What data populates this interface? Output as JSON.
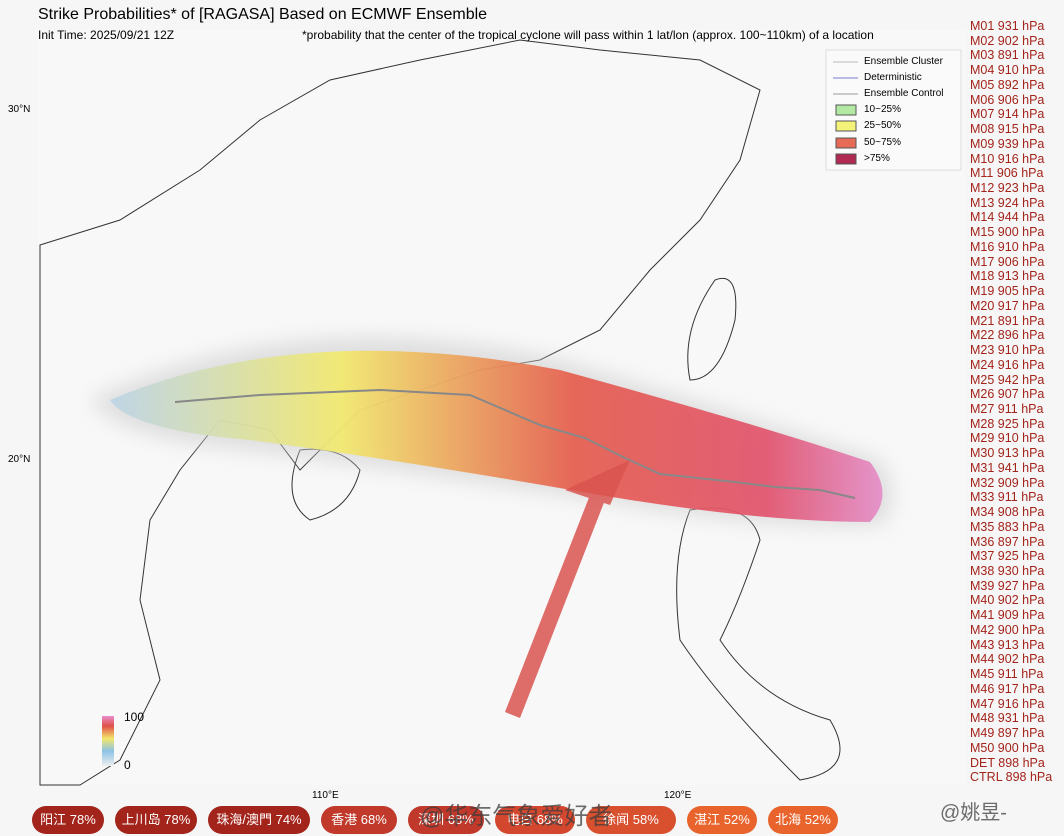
{
  "header": {
    "title": "Strike Probabilities* of [RAGASA] Based on ECMWF Ensemble",
    "init_time": "Init Time: 2025/09/21 12Z",
    "note": "*probability that the center of the tropical cyclone will pass within 1 lat/lon (approx. 100~110km) of a location"
  },
  "legend": {
    "lines": [
      "Ensemble Cluster",
      "Deterministic",
      "Ensemble Control"
    ],
    "bands": [
      "10~25%",
      "25~50%",
      "50~75%",
      ">75%"
    ]
  },
  "colorbar": {
    "max": "100",
    "min": "0"
  },
  "axes": {
    "lat": [
      "30°N",
      "20°N"
    ],
    "lon": [
      "110°E",
      "120°E"
    ]
  },
  "members": [
    "M01 931 hPa",
    "M02 902 hPa",
    "M03 891 hPa",
    "M04 910 hPa",
    "M05 892 hPa",
    "M06 906 hPa",
    "M07 914 hPa",
    "M08 915 hPa",
    "M09 939 hPa",
    "M10 916 hPa",
    "M11 906 hPa",
    "M12 923 hPa",
    "M13 924 hPa",
    "M14 944 hPa",
    "M15 900 hPa",
    "M16 910 hPa",
    "M17 906 hPa",
    "M18 913 hPa",
    "M19 905 hPa",
    "M20 917 hPa",
    "M21 891 hPa",
    "M22 896 hPa",
    "M23 910 hPa",
    "M24 916 hPa",
    "M25 942 hPa",
    "M26 907 hPa",
    "M27 911 hPa",
    "M28 925 hPa",
    "M29 910 hPa",
    "M30 913 hPa",
    "M31 941 hPa",
    "M32 909 hPa",
    "M33 911 hPa",
    "M34 908 hPa",
    "M35 883 hPa",
    "M36 897 hPa",
    "M37 925 hPa",
    "M38 930 hPa",
    "M39 927 hPa",
    "M40 902 hPa",
    "M41 909 hPa",
    "M42 900 hPa",
    "M43 913 hPa",
    "M44 902 hPa",
    "M45 911 hPa",
    "M46 917 hPa",
    "M47 916 hPa",
    "M48 931 hPa",
    "M49 897 hPa",
    "M50 900 hPa",
    "DET 898 hPa",
    "CTRL 898 hPa"
  ],
  "locations": [
    "阳江 78%",
    "上川岛 78%",
    "珠海/澳門 74%",
    "香港 68%",
    "深圳 68%",
    "电白 68%",
    "徐闻 58%",
    "湛江 52%",
    "北海 52%"
  ],
  "watermarks": [
    "@华东气象爱好者",
    "@姚昱-"
  ]
}
